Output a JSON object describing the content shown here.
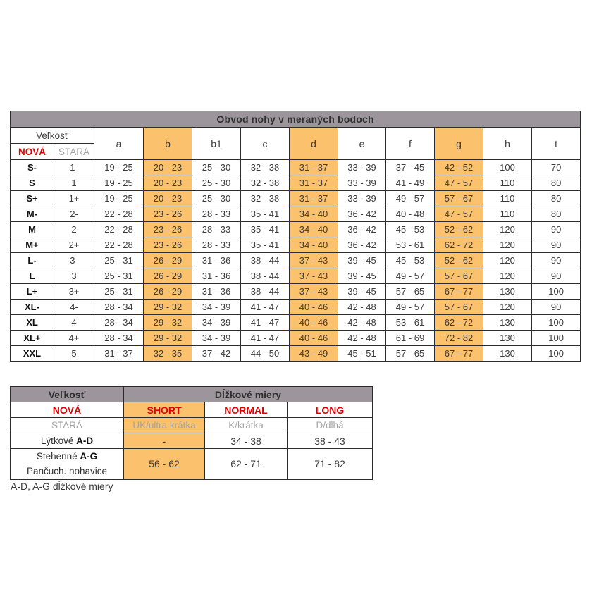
{
  "colors": {
    "header_band": "#9C959C",
    "highlight": "#FBC16C",
    "red": "#E00000",
    "gray_text": "#A3A3A3",
    "value_text": "#3C3C3C",
    "border": "#2B2B2B",
    "background": "#FFFFFF"
  },
  "table1": {
    "title": "Obvod nohy v meraných bodoch",
    "size_header": "Veľkosť",
    "new_label": "NOVÁ",
    "old_label": "STARÁ",
    "highlight_cols": [
      1,
      4,
      7
    ],
    "columns": [
      {
        "label": "a",
        "highlight": false
      },
      {
        "label": "b",
        "highlight": true
      },
      {
        "label": "b1",
        "highlight": false
      },
      {
        "label": "c",
        "highlight": false
      },
      {
        "label": "d",
        "highlight": true
      },
      {
        "label": "e",
        "highlight": false
      },
      {
        "label": "f",
        "highlight": false
      },
      {
        "label": "g",
        "highlight": true
      },
      {
        "label": "h",
        "highlight": false
      },
      {
        "label": "t",
        "highlight": false
      }
    ],
    "rows": [
      {
        "new": "S-",
        "old": "1-",
        "values": [
          "19 - 25",
          "20 - 23",
          "25 - 30",
          "32 - 38",
          "31 - 37",
          "33 - 39",
          "37 - 45",
          "42 - 52",
          "100",
          "70"
        ]
      },
      {
        "new": "S",
        "old": "1",
        "values": [
          "19 - 25",
          "20 - 23",
          "25 - 30",
          "32 - 38",
          "31 - 37",
          "33 - 39",
          "41 - 49",
          "47 - 57",
          "110",
          "80"
        ]
      },
      {
        "new": "S+",
        "old": "1+",
        "values": [
          "19 - 25",
          "20 - 23",
          "25 - 30",
          "32 - 38",
          "31 - 37",
          "33 - 39",
          "49 - 57",
          "57 - 67",
          "110",
          "80"
        ]
      },
      {
        "new": "M-",
        "old": "2-",
        "values": [
          "22 - 28",
          "23 - 26",
          "28 - 33",
          "35 - 41",
          "34 - 40",
          "36 - 42",
          "40 - 48",
          "47 - 57",
          "110",
          "80"
        ]
      },
      {
        "new": "M",
        "old": "2",
        "values": [
          "22 - 28",
          "23 - 26",
          "28 - 33",
          "35 - 41",
          "34 - 40",
          "36 - 42",
          "45 - 53",
          "52 - 62",
          "120",
          "90"
        ]
      },
      {
        "new": "M+",
        "old": "2+",
        "values": [
          "22 - 28",
          "23 - 26",
          "28 - 33",
          "35 - 41",
          "34 - 40",
          "36 - 42",
          "53 - 61",
          "62 - 72",
          "120",
          "90"
        ]
      },
      {
        "new": "L-",
        "old": "3-",
        "values": [
          "25 - 31",
          "26 - 29",
          "31 - 36",
          "38 - 44",
          "37 - 43",
          "39 - 45",
          "45 - 53",
          "52 - 62",
          "120",
          "90"
        ]
      },
      {
        "new": "L",
        "old": "3",
        "values": [
          "25 - 31",
          "26 - 29",
          "31 - 36",
          "38 - 44",
          "37 - 43",
          "39 - 45",
          "49 - 57",
          "57 - 67",
          "120",
          "90"
        ]
      },
      {
        "new": "L+",
        "old": "3+",
        "values": [
          "25 - 31",
          "26 - 29",
          "31 - 36",
          "38 - 44",
          "37 - 43",
          "39 - 45",
          "57 - 65",
          "67 - 77",
          "130",
          "100"
        ]
      },
      {
        "new": "XL-",
        "old": "4-",
        "values": [
          "28 - 34",
          "29 - 32",
          "34 - 39",
          "41 - 47",
          "40 - 46",
          "42 - 48",
          "49 - 57",
          "57 - 67",
          "120",
          "90"
        ]
      },
      {
        "new": "XL",
        "old": "4",
        "values": [
          "28 - 34",
          "29 - 32",
          "34 - 39",
          "41 - 47",
          "40 - 46",
          "42 - 48",
          "53 - 61",
          "62 - 72",
          "130",
          "100"
        ]
      },
      {
        "new": "XL+",
        "old": "4+",
        "values": [
          "28 - 34",
          "29 - 32",
          "34 - 39",
          "41 - 47",
          "40 - 46",
          "42 - 48",
          "61 - 69",
          "72 - 82",
          "130",
          "100"
        ]
      },
      {
        "new": "XXL",
        "old": "5",
        "values": [
          "31 - 37",
          "32 - 35",
          "37 - 42",
          "44 - 50",
          "43 - 49",
          "45 - 51",
          "57 - 65",
          "67 - 77",
          "130",
          "100"
        ]
      }
    ]
  },
  "table2": {
    "size_header": "Veľkosť",
    "title": "Dĺžkové miery",
    "new_label": "NOVÁ",
    "old_label": "STARÁ",
    "col_headers": [
      "SHORT",
      "NORMAL",
      "LONG"
    ],
    "old_values": [
      "UK/ultra krátka",
      "K/krátka",
      "D/dlhá"
    ],
    "rows": [
      {
        "label": "Lýtkové",
        "label_bold": "A-D",
        "values": [
          "-",
          "34 - 38",
          "38 - 43"
        ]
      },
      {
        "label_line1": "Stehenné",
        "label_line1_bold": "A-G",
        "label_line2": "Pančuch. nohavice",
        "values": [
          "56 - 62",
          "62 - 71",
          "71 - 82"
        ]
      }
    ]
  },
  "footer_note": "A-D, A-G dĺžkové miery"
}
